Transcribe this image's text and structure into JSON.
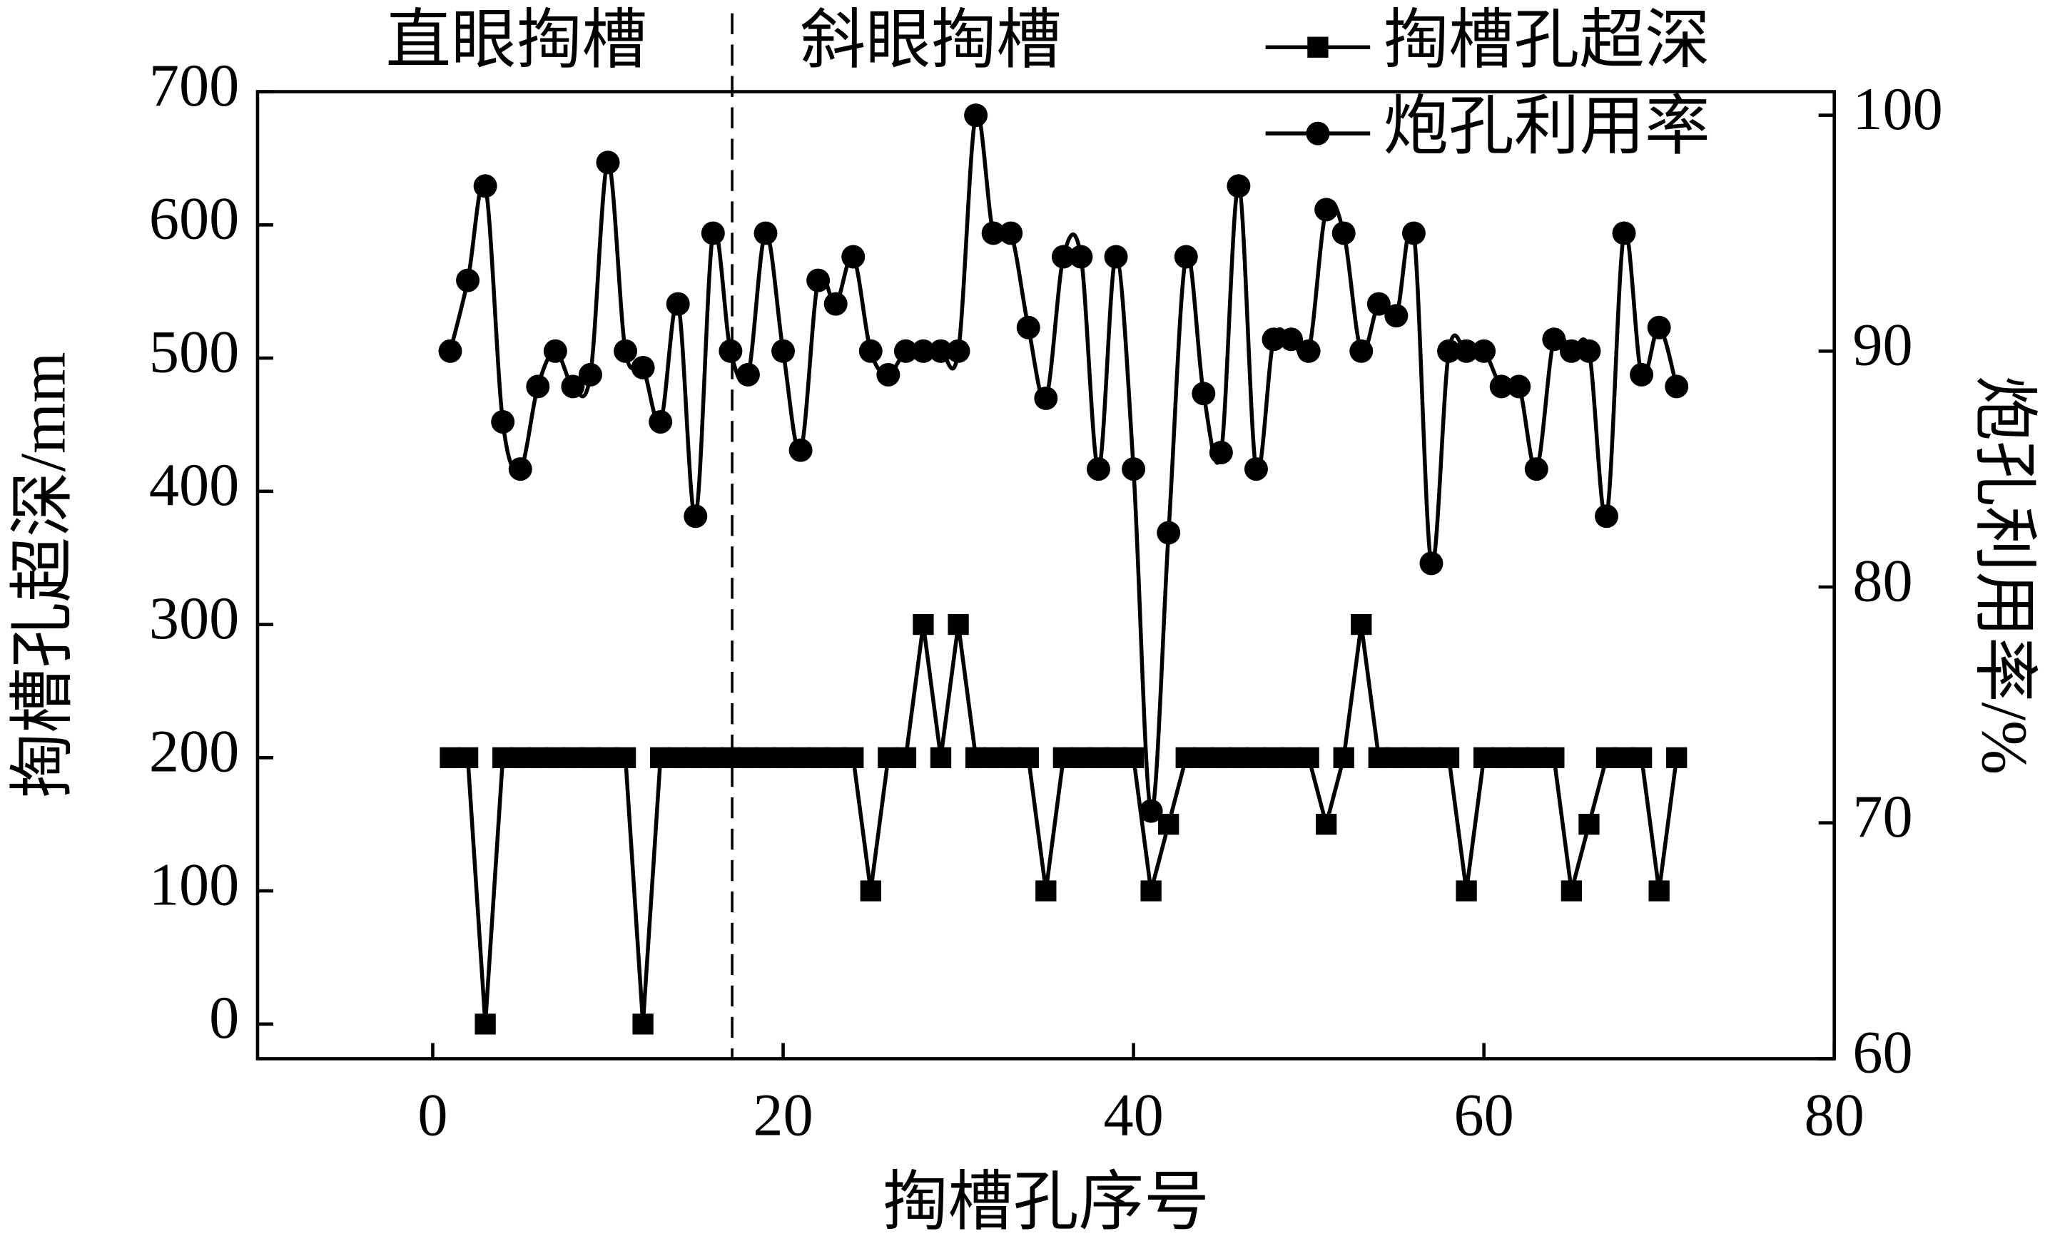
{
  "chart_data": {
    "type": "line",
    "x_label": "掏槽孔序号",
    "y_label": "掏槽孔超深/mm",
    "y2_label": "炮孔利用率/%",
    "annotations": [
      "直眼掏槽",
      "斜眼掏槽"
    ],
    "x": [
      1,
      2,
      3,
      4,
      5,
      6,
      7,
      8,
      9,
      10,
      11,
      12,
      13,
      14,
      15,
      16,
      17,
      18,
      19,
      20,
      21,
      22,
      23,
      24,
      25,
      26,
      27,
      28,
      29,
      30,
      31,
      32,
      33,
      34,
      35,
      36,
      37,
      38,
      39,
      40,
      41,
      42,
      43,
      44,
      45,
      46,
      47,
      48,
      49,
      50,
      51,
      52,
      53,
      54,
      55,
      56,
      57,
      58,
      59,
      60,
      61,
      62,
      63,
      64,
      65,
      66,
      67,
      68,
      69,
      70,
      71
    ],
    "series": [
      {
        "name": "掏槽孔超深",
        "color": "#000000",
        "marker": "square",
        "smooth": false,
        "values": [
          200,
          200,
          0,
          200,
          200,
          200,
          200,
          200,
          200,
          200,
          200,
          0,
          200,
          200,
          200,
          200,
          200,
          200,
          200,
          200,
          200,
          200,
          200,
          200,
          100,
          200,
          200,
          300,
          200,
          300,
          200,
          200,
          200,
          200,
          100,
          200,
          200,
          200,
          200,
          200,
          100,
          150,
          200,
          200,
          200,
          200,
          200,
          200,
          200,
          200,
          150,
          200,
          300,
          200,
          200,
          200,
          200,
          200,
          100,
          200,
          200,
          200,
          200,
          200,
          100,
          150,
          200,
          200,
          200,
          100,
          200
        ]
      },
      {
        "name": "炮孔利用率",
        "color": "#000000",
        "marker": "circle",
        "smooth": true,
        "axis": "y2",
        "values": [
          90,
          93,
          97,
          87,
          85,
          88.5,
          90,
          88.5,
          89,
          98,
          90,
          89.3,
          87,
          92,
          83,
          95,
          90,
          89,
          95,
          90,
          85.8,
          93,
          92,
          94,
          90,
          89,
          90,
          90,
          90,
          90,
          100,
          95,
          95,
          91,
          88,
          94,
          94,
          85,
          94,
          85,
          70.5,
          82.3,
          94,
          88.2,
          85.7,
          97,
          85,
          90.5,
          90.5,
          90,
          96,
          95,
          90,
          92,
          91.5,
          95,
          81,
          90,
          90,
          90,
          88.5,
          88.5,
          85,
          90.5,
          90,
          90,
          83,
          95,
          89,
          91,
          88.5
        ]
      }
    ],
    "xlim": [
      -10,
      80
    ],
    "xticks": [
      0,
      20,
      40,
      60,
      80
    ],
    "ylim": [
      -26,
      700
    ],
    "yticks": [
      0,
      100,
      200,
      300,
      400,
      500,
      600,
      700
    ],
    "y2lim": [
      60,
      101
    ],
    "y2ticks": [
      60,
      70,
      80,
      90,
      100
    ],
    "legend": "top-right"
  }
}
